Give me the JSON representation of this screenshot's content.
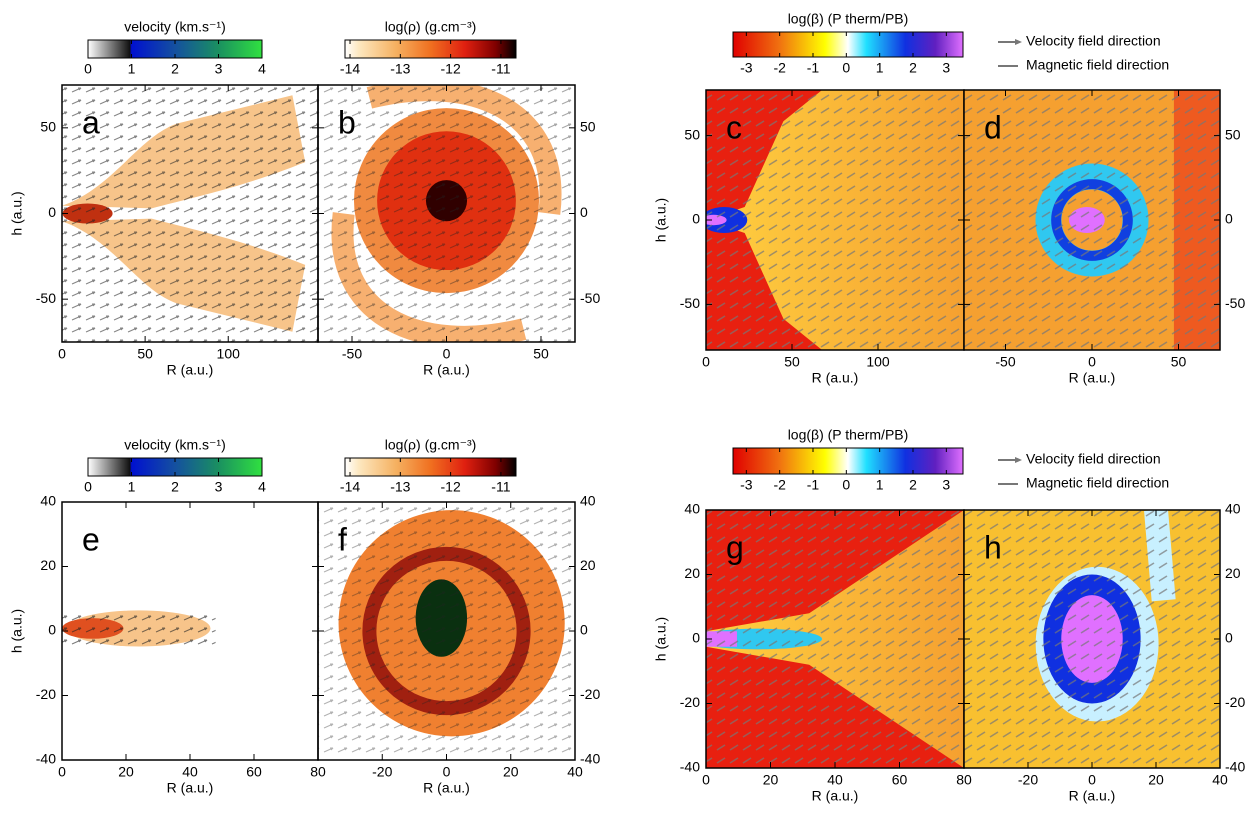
{
  "chart_data": [
    {
      "type": "heatmap",
      "panel": "a",
      "xlabel": "R (a.u.)",
      "ylabel": "h (a.u.)",
      "xlim": [
        0,
        154
      ],
      "ylim": [
        -75,
        75
      ],
      "xticks": [
        0,
        50,
        100
      ],
      "yticks": [
        -50,
        0,
        50
      ],
      "yaxis_side": "left",
      "colorbar": {
        "title": "velocity (km.s⁻¹)",
        "lim": [
          0,
          4
        ],
        "ticks": [
          0,
          1,
          2,
          3,
          4
        ],
        "palette": "velocity"
      }
    },
    {
      "type": "heatmap",
      "panel": "b",
      "xlabel": "R (a.u.)",
      "xlim": [
        -68,
        68
      ],
      "ylim": [
        -75,
        75
      ],
      "xticks": [
        -50,
        0,
        50
      ],
      "yticks": [
        -50,
        0,
        50
      ],
      "yaxis_side": "right",
      "colorbar": {
        "title": "log(ρ) (g.cm⁻³)",
        "lim": [
          -14.1,
          -10.7
        ],
        "ticks": [
          -14,
          -13,
          -12,
          -11
        ],
        "palette": "density"
      }
    },
    {
      "type": "heatmap",
      "panel": "c",
      "xlabel": "R (a.u.)",
      "ylabel": "h (a.u.)",
      "xlim": [
        0,
        150
      ],
      "ylim": [
        -77,
        77
      ],
      "xticks": [
        0,
        50,
        100
      ],
      "yticks": [
        -50,
        0,
        50
      ],
      "yaxis_side": "left",
      "colorbar": {
        "title": "log(β) (P therm/PB)",
        "lim": [
          -3.4,
          3.5
        ],
        "ticks": [
          -3,
          -2,
          -1,
          0,
          1,
          2,
          3
        ],
        "palette": "beta"
      }
    },
    {
      "type": "heatmap",
      "panel": "d",
      "xlabel": "R (a.u.)",
      "xlim": [
        -74,
        74
      ],
      "ylim": [
        -77,
        77
      ],
      "xticks": [
        -50,
        0,
        50
      ],
      "yticks": [
        -50,
        0,
        50
      ],
      "yaxis_side": "right",
      "legend_items": [
        "Velocity field direction",
        "Magnetic field direction"
      ]
    },
    {
      "type": "heatmap",
      "panel": "e",
      "xlabel": "R (a.u.)",
      "ylabel": "h (a.u.)",
      "xlim": [
        0,
        80
      ],
      "ylim": [
        -40,
        40
      ],
      "xticks": [
        0,
        20,
        40,
        60,
        80
      ],
      "yticks": [
        -40,
        -20,
        0,
        20,
        40
      ],
      "yaxis_side": "left",
      "colorbar": {
        "title": "velocity (km.s⁻¹)",
        "lim": [
          0,
          4
        ],
        "ticks": [
          0,
          1,
          2,
          3,
          4
        ],
        "palette": "velocity"
      }
    },
    {
      "type": "heatmap",
      "panel": "f",
      "xlabel": "R (a.u.)",
      "xlim": [
        -40,
        40
      ],
      "ylim": [
        -40,
        40
      ],
      "xticks": [
        -20,
        0,
        20,
        40
      ],
      "yticks": [
        -40,
        -20,
        0,
        20,
        40
      ],
      "yaxis_side": "right",
      "colorbar": {
        "title": "log(ρ) (g.cm⁻³)",
        "lim": [
          -14.1,
          -10.7
        ],
        "ticks": [
          -14,
          -13,
          -12,
          -11
        ],
        "palette": "density"
      }
    },
    {
      "type": "heatmap",
      "panel": "g",
      "xlabel": "R (a.u.)",
      "ylabel": "h (a.u.)",
      "xlim": [
        0,
        80
      ],
      "ylim": [
        -40,
        40
      ],
      "xticks": [
        0,
        20,
        40,
        60,
        80
      ],
      "yticks": [
        -40,
        -20,
        0,
        20,
        40
      ],
      "yaxis_side": "left",
      "colorbar": {
        "title": "log(β) (P therm/PB)",
        "lim": [
          -3.4,
          3.5
        ],
        "ticks": [
          -3,
          -2,
          -1,
          0,
          1,
          2,
          3
        ],
        "palette": "beta"
      }
    },
    {
      "type": "heatmap",
      "panel": "h",
      "xlabel": "R (a.u.)",
      "xlim": [
        -40,
        40
      ],
      "ylim": [
        -40,
        40
      ],
      "xticks": [
        -20,
        0,
        20,
        40
      ],
      "yticks": [
        -40,
        -20,
        0,
        20,
        40
      ],
      "yaxis_side": "right",
      "legend_items": [
        "Velocity field direction",
        "Magnetic field direction"
      ]
    }
  ]
}
